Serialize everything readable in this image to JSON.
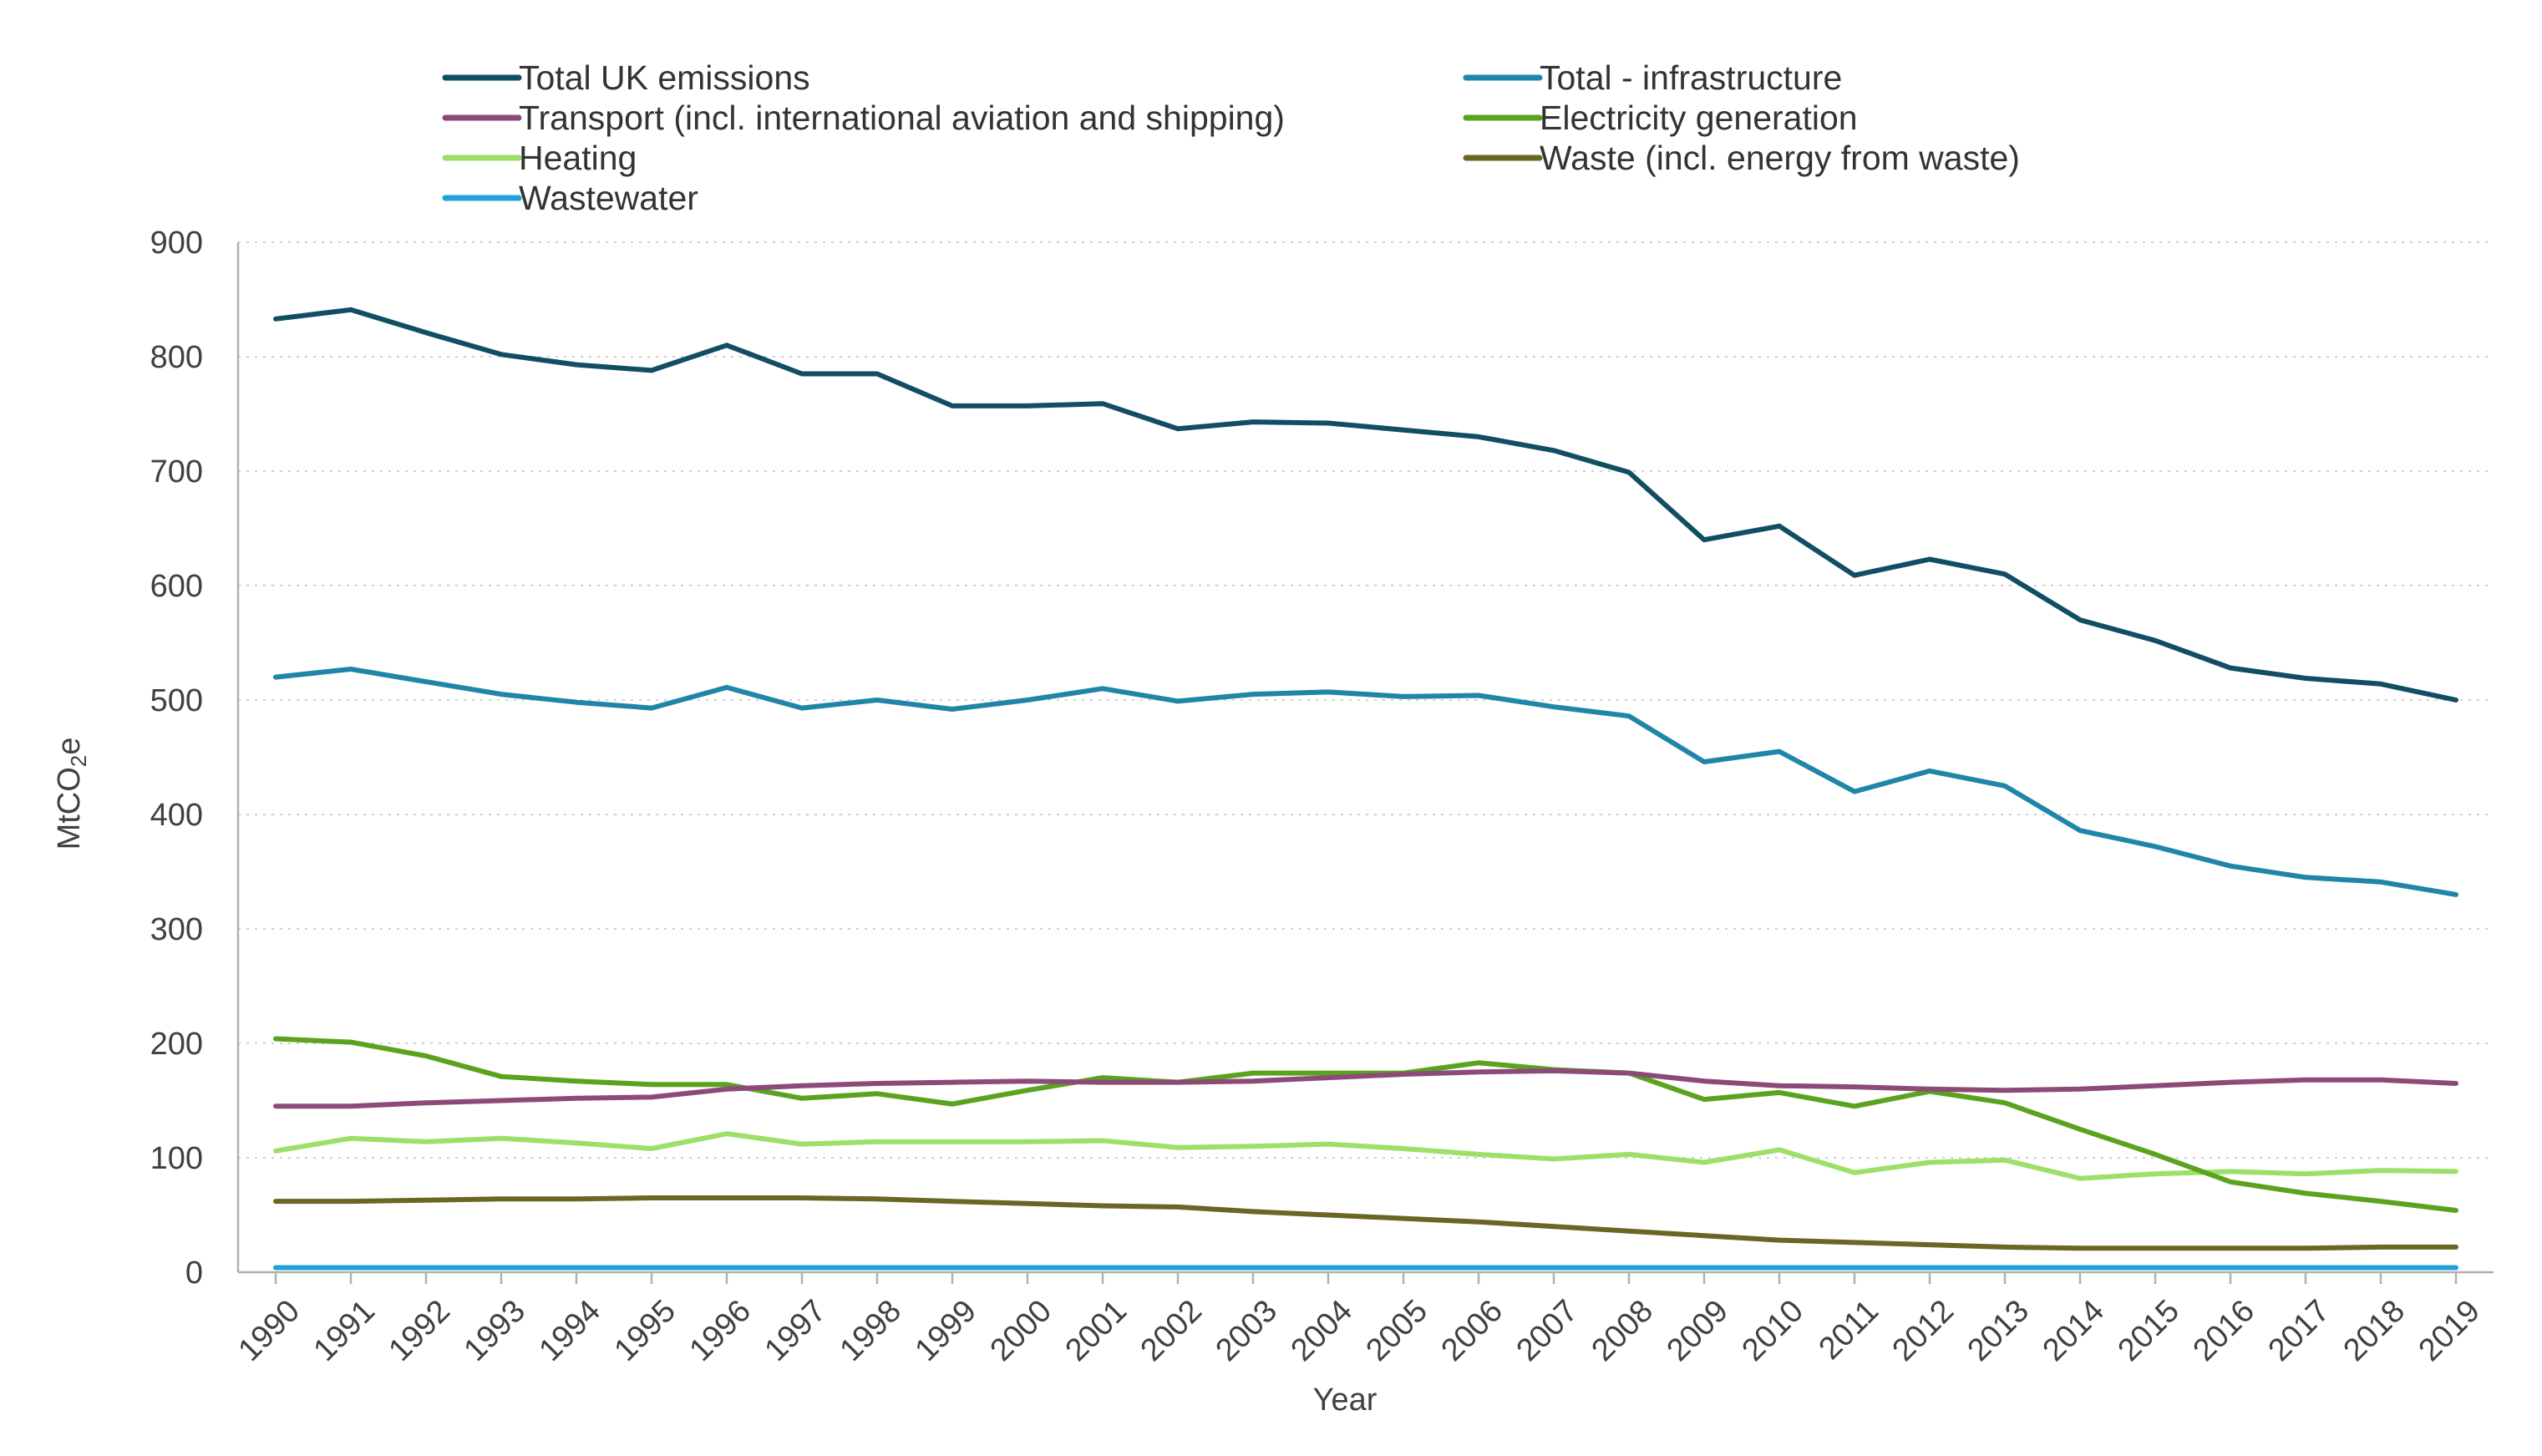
{
  "chart_data": {
    "type": "line",
    "title": "",
    "xlabel": "Year",
    "ylabel": "MtCO2e",
    "ylabel_main": "MtCO",
    "ylabel_sub": "2",
    "ylabel_end": "e",
    "ylim": [
      0,
      900
    ],
    "yticks": [
      "0",
      "100",
      "200",
      "300",
      "400",
      "500",
      "600",
      "700",
      "800",
      "900"
    ],
    "grid": true,
    "legend_position": "top",
    "x": [
      "1990",
      "1991",
      "1992",
      "1993",
      "1994",
      "1995",
      "1996",
      "1997",
      "1998",
      "1999",
      "2000",
      "2001",
      "2002",
      "2003",
      "2004",
      "2005",
      "2006",
      "2007",
      "2008",
      "2009",
      "2010",
      "2011",
      "2012",
      "2013",
      "2014",
      "2015",
      "2016",
      "2017",
      "2018",
      "2019"
    ],
    "series": [
      {
        "name": "Total UK emissions",
        "color": "#124e63",
        "values": [
          833,
          841,
          821,
          802,
          793,
          788,
          810,
          785,
          785,
          757,
          757,
          759,
          737,
          743,
          742,
          736,
          730,
          718,
          699,
          640,
          652,
          609,
          623,
          610,
          570,
          552,
          528,
          519,
          514,
          500
        ]
      },
      {
        "name": "Total - infrastructure",
        "color": "#2085a8",
        "values": [
          520,
          527,
          516,
          505,
          498,
          493,
          511,
          493,
          500,
          492,
          500,
          510,
          499,
          505,
          507,
          503,
          504,
          494,
          486,
          446,
          455,
          420,
          438,
          425,
          386,
          372,
          355,
          345,
          341,
          330
        ]
      },
      {
        "name": "Transport (incl. international aviation and shipping)",
        "color": "#8c4a78",
        "values": [
          145,
          145,
          148,
          150,
          152,
          153,
          160,
          163,
          165,
          166,
          167,
          166,
          166,
          167,
          170,
          173,
          175,
          176,
          174,
          167,
          163,
          162,
          160,
          159,
          160,
          163,
          166,
          168,
          168,
          165
        ]
      },
      {
        "name": "Electricity generation",
        "color": "#5aa31f",
        "values": [
          204,
          201,
          189,
          171,
          167,
          164,
          164,
          152,
          156,
          147,
          159,
          170,
          166,
          174,
          174,
          174,
          183,
          177,
          174,
          151,
          157,
          145,
          158,
          148,
          125,
          103,
          79,
          69,
          62,
          54
        ]
      },
      {
        "name": "Heating",
        "color": "#9ce06a",
        "values": [
          106,
          117,
          114,
          117,
          113,
          108,
          121,
          112,
          114,
          114,
          114,
          115,
          109,
          110,
          112,
          108,
          103,
          99,
          103,
          96,
          107,
          87,
          96,
          98,
          82,
          86,
          88,
          86,
          89,
          88
        ]
      },
      {
        "name": "Waste (incl. energy from waste)",
        "color": "#6b6623",
        "values": [
          62,
          62,
          63,
          64,
          64,
          65,
          65,
          65,
          64,
          62,
          60,
          58,
          57,
          53,
          50,
          47,
          44,
          40,
          36,
          32,
          28,
          26,
          24,
          22,
          21,
          21,
          21,
          21,
          22,
          22
        ]
      },
      {
        "name": "Wastewater",
        "color": "#20a2d8",
        "values": [
          4,
          4,
          4,
          4,
          4,
          4,
          4,
          4,
          4,
          4,
          4,
          4,
          4,
          4,
          4,
          4,
          4,
          4,
          4,
          4,
          4,
          4,
          4,
          4,
          4,
          4,
          4,
          4,
          4,
          4
        ]
      }
    ]
  }
}
